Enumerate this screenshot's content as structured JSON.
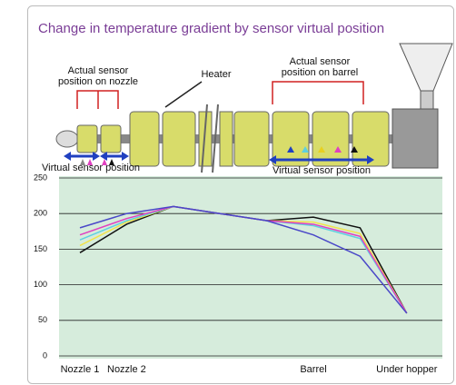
{
  "chart_data": {
    "type": "line",
    "title": "Change in temperature gradient by sensor virtual position",
    "categories": [
      "Nozzle 1",
      "Nozzle 2",
      null,
      null,
      null,
      "Barrel",
      null,
      "Under hopper"
    ],
    "series": [
      {
        "color": "#111111",
        "values": [
          145,
          185,
          210,
          200,
          190,
          195,
          180,
          60
        ]
      },
      {
        "color": "#f2e34a",
        "values": [
          155,
          188,
          210,
          200,
          190,
          188,
          172,
          60
        ]
      },
      {
        "color": "#5fd0e0",
        "values": [
          163,
          190,
          210,
          200,
          190,
          183,
          165,
          60
        ]
      },
      {
        "color": "#e040c0",
        "values": [
          170,
          193,
          210,
          200,
          190,
          185,
          168,
          60
        ]
      },
      {
        "color": "#4a48c8",
        "values": [
          180,
          200,
          210,
          200,
          190,
          170,
          140,
          60
        ]
      }
    ],
    "ylim": [
      0,
      250
    ],
    "yticks": [
      0,
      50,
      100,
      150,
      200,
      250
    ],
    "grid": true
  },
  "diagram": {
    "nozzle_label": [
      "Actual sensor",
      "position on nozzle"
    ],
    "heater": "Heater",
    "barrel_label": [
      "Actual sensor",
      "position on barrel"
    ],
    "virtual_nozzle": "Virtual sensor position",
    "virtual_barrel": "Virtual sensor position"
  }
}
